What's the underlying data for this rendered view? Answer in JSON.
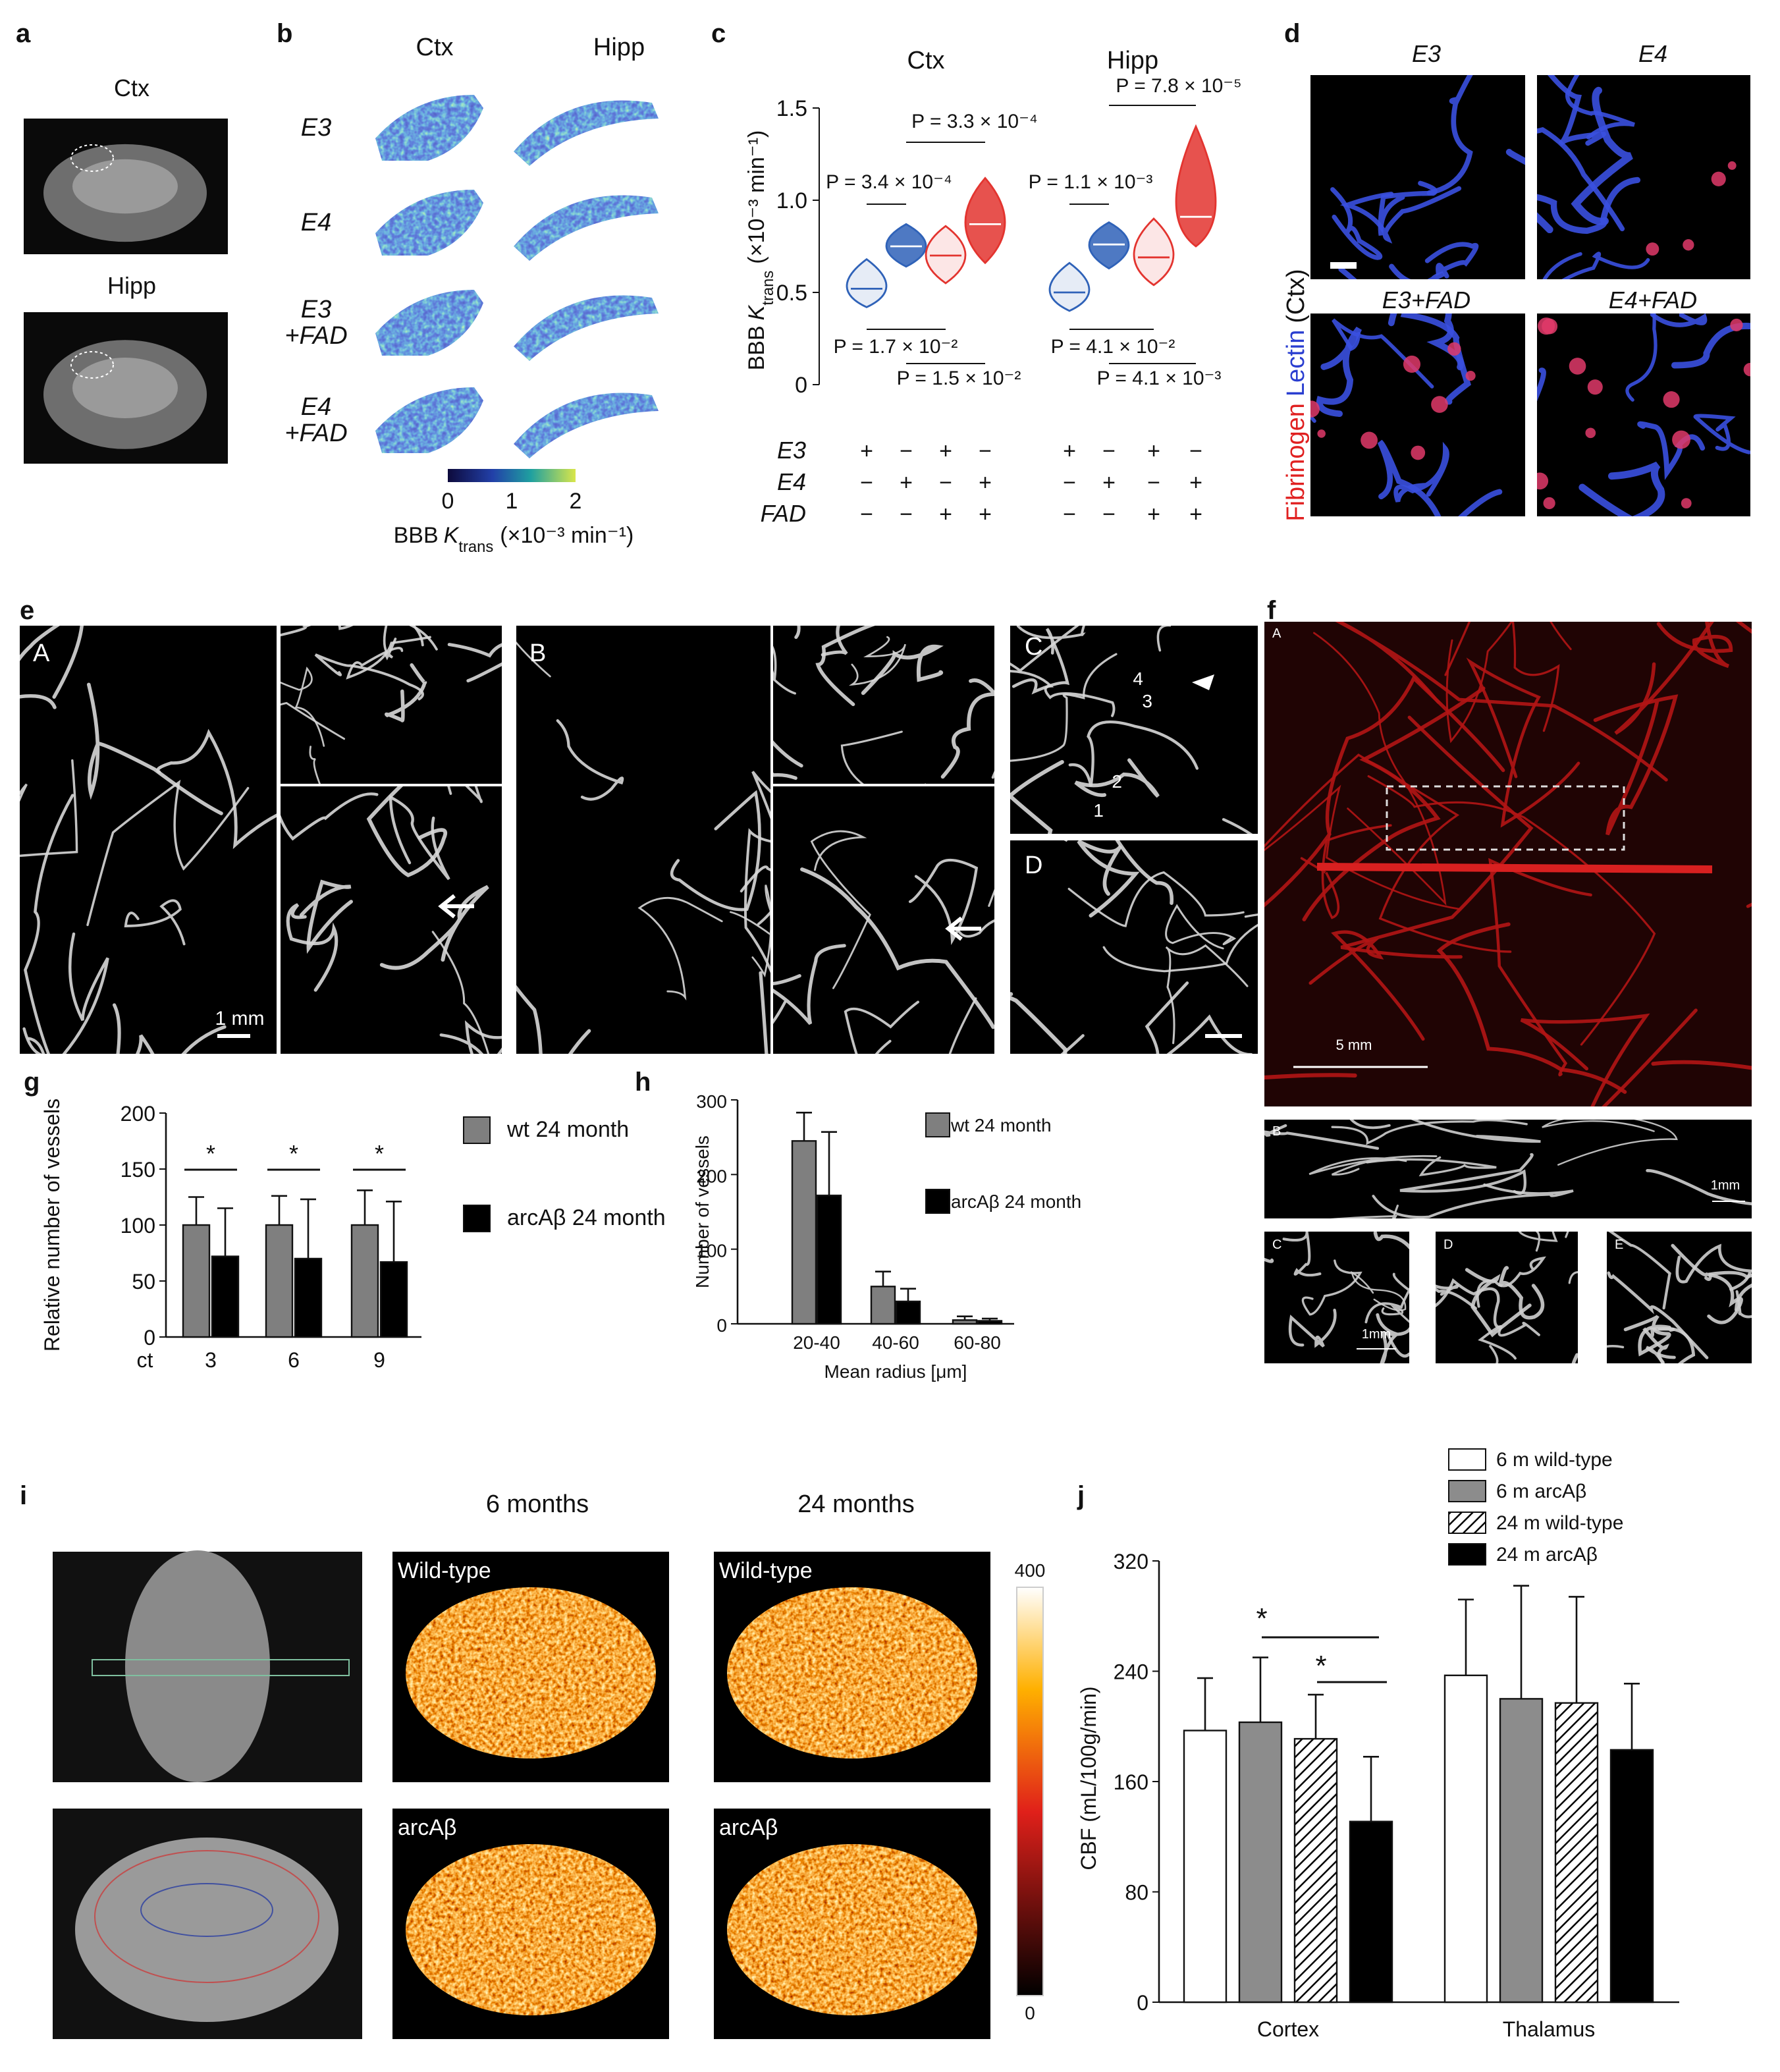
{
  "figure": {
    "panel_letters": [
      "a",
      "b",
      "c",
      "d",
      "e",
      "f",
      "g",
      "h",
      "i",
      "j"
    ],
    "a": {
      "top": "Ctx",
      "bottom": "Hipp"
    },
    "b": {
      "columns": [
        "Ctx",
        "Hipp"
      ],
      "rows": [
        "E3",
        "E4",
        "E3 +FAD",
        "E4 +FAD"
      ],
      "colorbar": {
        "lim": [
          0,
          2
        ],
        "ticks": [
          0,
          1,
          2
        ],
        "label": [
          "BBB",
          "K",
          "trans",
          "(×10⁻³ min⁻¹)"
        ]
      }
    },
    "d": {
      "titles": [
        "E3",
        "E4",
        "E3+FAD",
        "E4+FAD"
      ],
      "side_label": [
        "Fibrinogen",
        "Lectin",
        "(Ctx)"
      ]
    },
    "e": {
      "subpanels": [
        "A",
        "B",
        "C",
        "D"
      ],
      "scale_bar": "1 mm",
      "markers": [
        "4",
        "3",
        "2",
        "1"
      ]
    },
    "f": {
      "subpanels": [
        "A",
        "B",
        "C",
        "D",
        "E"
      ],
      "scale_bars": [
        "5 mm",
        "1mm",
        "1mm"
      ]
    },
    "i": {
      "columns": [
        "6 months",
        "24 months"
      ],
      "rows": [
        "Wild-type",
        "arcAβ"
      ],
      "colorbar": {
        "lim": [
          0,
          400
        ],
        "ticks": [
          0,
          400
        ]
      }
    }
  },
  "chart_data": [
    {
      "type": "violin",
      "regions": [
        "Ctx",
        "Hipp"
      ],
      "ylabel": [
        "BBB",
        "K",
        "trans",
        "(×10⁻³ min⁻¹)"
      ],
      "ylim": [
        0,
        1.5
      ],
      "yticks": [
        0,
        0.5,
        {
          "value": 1,
          "label": "1.0"
        },
        1.5
      ],
      "medians": [
        0.52,
        0.75,
        0.7,
        0.87,
        0.5,
        0.76,
        0.69,
        0.91
      ],
      "mins": [
        0.42,
        0.64,
        0.55,
        0.66,
        0.4,
        0.63,
        0.54,
        0.75
      ],
      "maxs": [
        0.68,
        0.87,
        0.86,
        1.12,
        0.66,
        0.88,
        0.9,
        1.4
      ],
      "colors": [
        "#2f62b8",
        "#2f62b8",
        "#e3342f",
        "#e3342f",
        "#2f62b8",
        "#2f62b8",
        "#e3342f",
        "#e3342f"
      ],
      "conditions": [
        {
          "label": "E3",
          "signs": [
            "+",
            "−",
            "+",
            "−",
            "+",
            "−",
            "+",
            "−"
          ]
        },
        {
          "label": "E4",
          "signs": [
            "−",
            "+",
            "−",
            "+",
            "−",
            "+",
            "−",
            "+"
          ]
        },
        {
          "label": "FAD",
          "signs": [
            "−",
            "−",
            "+",
            "+",
            "−",
            "−",
            "+",
            "+"
          ]
        }
      ],
      "annotations": [
        "P = 3.4 × 10⁻⁴",
        "P = 3.3 × 10⁻⁴",
        "P = 1.7 × 10⁻²",
        "P = 1.5 × 10⁻²",
        "P = 1.1 × 10⁻³",
        "P = 7.8 × 10⁻⁵",
        "P = 4.1 × 10⁻²",
        "P = 4.1 × 10⁻³"
      ]
    },
    {
      "type": "bar",
      "ylabel": "Relative number of vessels",
      "xlabel_lead": "ct",
      "categories": [
        "3",
        "6",
        "9"
      ],
      "ylim": [
        0,
        200
      ],
      "yticks": [
        0,
        50,
        100,
        150,
        200
      ],
      "series": [
        {
          "name": "wt 24 month",
          "color": "#7f7f7f",
          "values": [
            100,
            100,
            100
          ],
          "errors": [
            25,
            26,
            31
          ]
        },
        {
          "name": "arcAβ 24 month",
          "color": "#000000",
          "values": [
            72,
            70,
            67
          ],
          "errors": [
            43,
            53,
            54
          ]
        }
      ],
      "annotations": [
        "*",
        "*",
        "*"
      ]
    },
    {
      "type": "bar",
      "ylabel": "Number of vessels",
      "xlabel": "Mean radius [μm]",
      "categories": [
        "20-40",
        "40-60",
        "60-80"
      ],
      "ylim": [
        0,
        300
      ],
      "yticks": [
        0,
        100,
        200,
        300
      ],
      "series": [
        {
          "name": "wt 24 month",
          "color": "#7f7f7f",
          "values": [
            245,
            50,
            5
          ],
          "errors": [
            38,
            20,
            5
          ]
        },
        {
          "name": "arcAβ 24 month",
          "color": "#000000",
          "values": [
            172,
            30,
            4
          ],
          "errors": [
            85,
            17,
            3
          ]
        }
      ]
    },
    {
      "type": "bar",
      "ylabel": "CBF (mL/100g/min)",
      "categories": [
        "Cortex",
        "Thalamus"
      ],
      "ylim": [
        0,
        320
      ],
      "yticks": [
        0,
        80,
        160,
        240,
        320
      ],
      "series": [
        {
          "name": "6 m wild-type",
          "color": "#ffffff",
          "hatch": false,
          "values": [
            197,
            237
          ],
          "errors": [
            38,
            55
          ]
        },
        {
          "name": "6 m arcAβ",
          "color": "#8c8c8c",
          "hatch": false,
          "values": [
            203,
            220
          ],
          "errors": [
            47,
            82
          ]
        },
        {
          "name": "24 m wild-type",
          "color": "#ffffff",
          "hatch": true,
          "values": [
            191,
            217
          ],
          "errors": [
            32,
            77
          ]
        },
        {
          "name": "24 m arcAβ",
          "color": "#000000",
          "hatch": false,
          "values": [
            131,
            183
          ],
          "errors": [
            47,
            48
          ]
        }
      ],
      "annotations": [
        "*",
        "*"
      ]
    }
  ]
}
